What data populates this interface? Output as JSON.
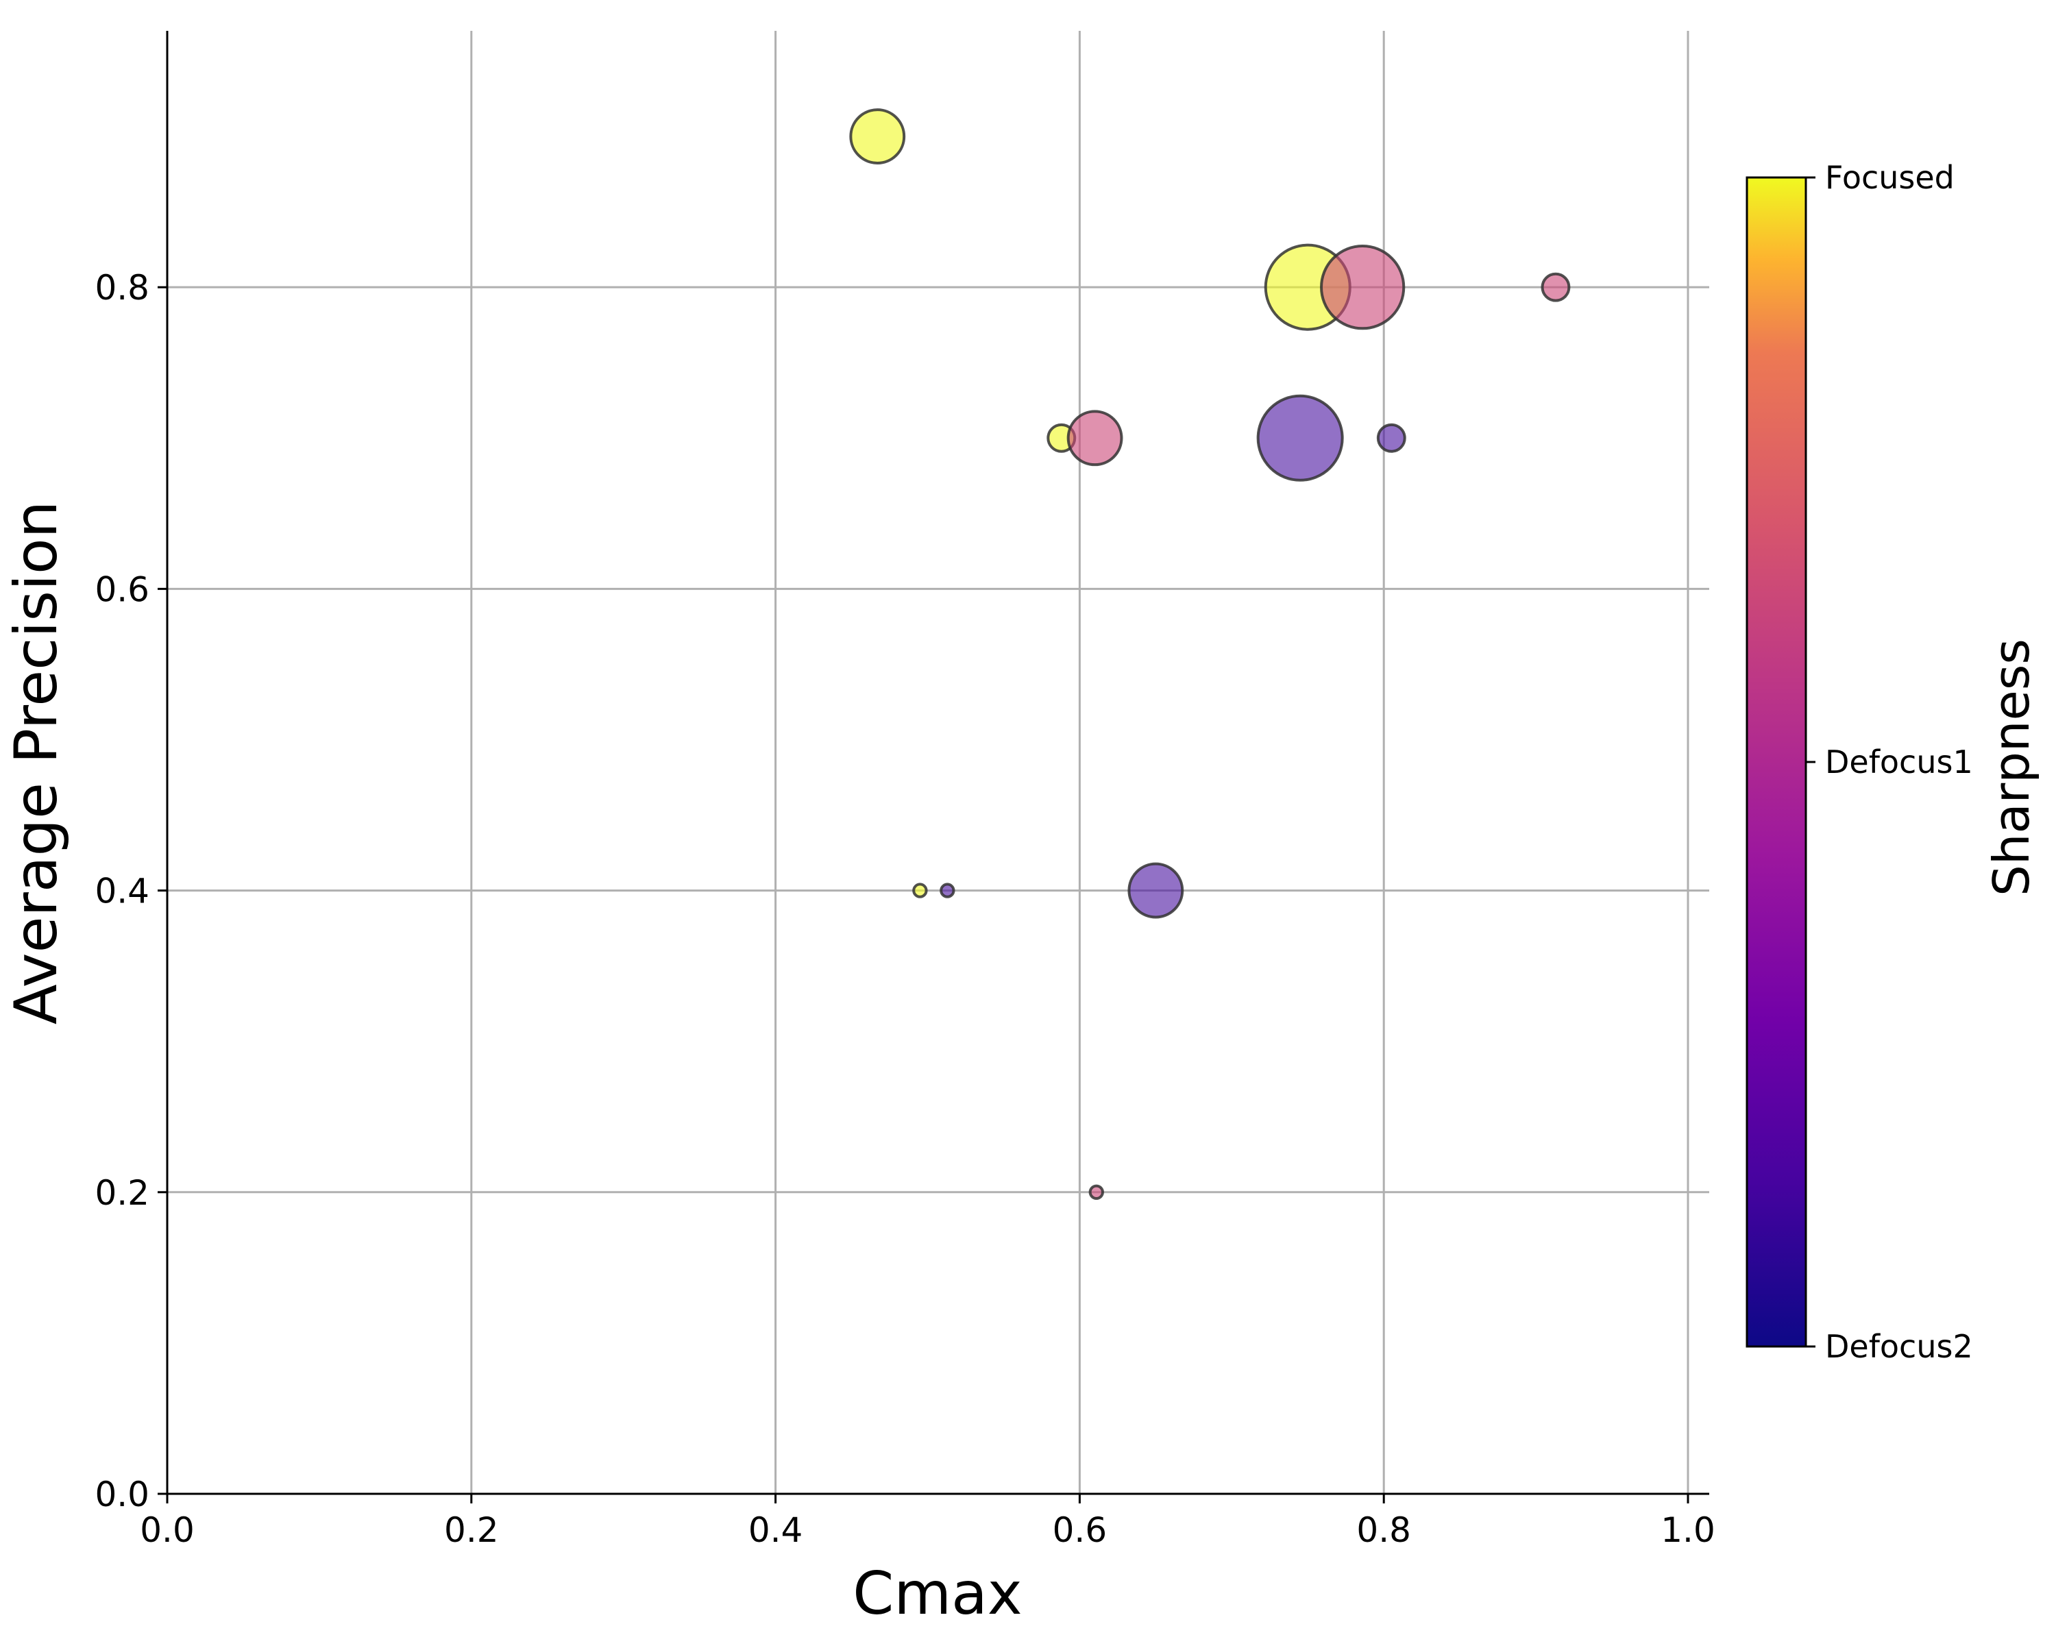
{
  "chart_data": {
    "type": "scatter",
    "title": "",
    "xlabel": "Cmax",
    "ylabel": "Average Precision",
    "xlim": [
      0.0,
      1.0
    ],
    "ylim": [
      0.0,
      0.97
    ],
    "x_ticks": [
      "0.0",
      "0.2",
      "0.4",
      "0.6",
      "0.8",
      "1.0"
    ],
    "y_ticks": [
      "0.0",
      "0.2",
      "0.4",
      "0.6",
      "0.8"
    ],
    "grid": true,
    "marker_alpha": 0.6,
    "colorbar": {
      "label": "Sharpness",
      "colormap": "plasma",
      "ticks": [
        "Defocus2",
        "Defocus1",
        "Focused"
      ],
      "colors": {
        "Focused": "#f0f921",
        "Defocus1": "#cc4778",
        "Defocus2": "#0d0887",
        "Defocus2_at_bubbles": "#4a12a0"
      }
    },
    "points": [
      {
        "x": 0.467,
        "y": 0.9,
        "sharpness": "Focused",
        "size": 1.8
      },
      {
        "x": 0.75,
        "y": 0.8,
        "sharpness": "Focused",
        "size": 4.5
      },
      {
        "x": 0.786,
        "y": 0.8,
        "sharpness": "Defocus1",
        "size": 4.3
      },
      {
        "x": 0.913,
        "y": 0.8,
        "sharpness": "Defocus1",
        "size": 0.45
      },
      {
        "x": 0.588,
        "y": 0.7,
        "sharpness": "Focused",
        "size": 0.45
      },
      {
        "x": 0.61,
        "y": 0.7,
        "sharpness": "Defocus1",
        "size": 1.8
      },
      {
        "x": 0.745,
        "y": 0.7,
        "sharpness": "Defocus2",
        "size": 4.5
      },
      {
        "x": 0.805,
        "y": 0.7,
        "sharpness": "Defocus2",
        "size": 0.45
      },
      {
        "x": 0.495,
        "y": 0.4,
        "sharpness": "Focused",
        "size": 0.1
      },
      {
        "x": 0.513,
        "y": 0.4,
        "sharpness": "Defocus2",
        "size": 0.1
      },
      {
        "x": 0.65,
        "y": 0.4,
        "sharpness": "Defocus2",
        "size": 1.8
      },
      {
        "x": 0.611,
        "y": 0.2,
        "sharpness": "Defocus1",
        "size": 0.1
      }
    ]
  }
}
